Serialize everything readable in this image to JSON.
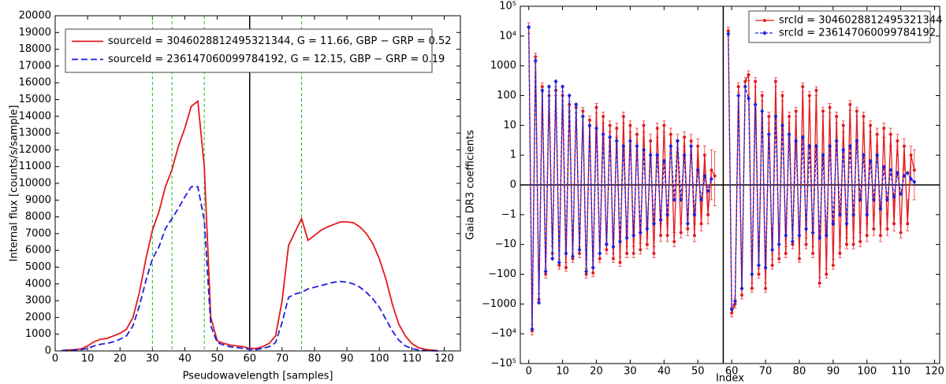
{
  "chart_data": [
    {
      "type": "line",
      "xlabel": "Pseudowavelength [samples]",
      "ylabel": "Internal flux [counts/s/sample]",
      "x": [
        2,
        4,
        6,
        8,
        10,
        12,
        14,
        16,
        18,
        20,
        22,
        24,
        26,
        28,
        30,
        32,
        34,
        36,
        38,
        40,
        42,
        44,
        46,
        48,
        50,
        52,
        54,
        56,
        58,
        60,
        62,
        64,
        66,
        68,
        70,
        72,
        74,
        76,
        78,
        80,
        82,
        84,
        86,
        88,
        90,
        92,
        94,
        96,
        98,
        100,
        102,
        104,
        106,
        108,
        110,
        112,
        114,
        116,
        118
      ],
      "series": [
        {
          "name": "sourceId = 3046028812495321344,  G = 11.66,  GBP − GRP = 0.52",
          "color": "#e41a1c",
          "dashed": false,
          "values": [
            30,
            60,
            80,
            120,
            300,
            550,
            700,
            750,
            900,
            1050,
            1300,
            2000,
            3500,
            5500,
            7200,
            8300,
            9800,
            10800,
            12200,
            13300,
            14600,
            14900,
            11000,
            2000,
            600,
            450,
            350,
            300,
            250,
            150,
            150,
            250,
            450,
            900,
            3000,
            6300,
            7100,
            7900,
            6600,
            6900,
            7200,
            7400,
            7550,
            7700,
            7700,
            7650,
            7400,
            7000,
            6400,
            5500,
            4300,
            2800,
            1600,
            900,
            450,
            200,
            100,
            60,
            20
          ]
        },
        {
          "name": "sourceId = 236147060099784192,  G = 12.15,  GBP − GRP = 0.19",
          "color": "#1f1fe0",
          "dashed": true,
          "values": [
            20,
            40,
            60,
            80,
            150,
            300,
            400,
            450,
            550,
            700,
            900,
            1500,
            2700,
            4200,
            5500,
            6200,
            7300,
            7900,
            8500,
            9200,
            9800,
            9800,
            7800,
            1500,
            500,
            350,
            250,
            200,
            150,
            100,
            80,
            150,
            250,
            500,
            1700,
            3200,
            3400,
            3500,
            3700,
            3800,
            3900,
            4000,
            4100,
            4150,
            4100,
            4000,
            3800,
            3500,
            3100,
            2600,
            1900,
            1200,
            650,
            300,
            150,
            60,
            30,
            15,
            5
          ]
        }
      ],
      "xlim": [
        0,
        125
      ],
      "ylim": [
        0,
        20000
      ],
      "xticks": [
        0,
        10,
        20,
        30,
        40,
        50,
        60,
        70,
        80,
        90,
        100,
        110,
        120
      ],
      "yticks": [
        0,
        1000,
        2000,
        3000,
        4000,
        5000,
        6000,
        7000,
        8000,
        9000,
        10000,
        11000,
        12000,
        13000,
        14000,
        15000,
        16000,
        17000,
        18000,
        19000,
        20000
      ],
      "reference_lines": [
        {
          "x": 30,
          "color": "#22bb22",
          "dashed": true
        },
        {
          "x": 36,
          "color": "#22bb22",
          "dashed": true
        },
        {
          "x": 46,
          "color": "#22bb22",
          "dashed": true
        },
        {
          "x": 76,
          "color": "#22bb22",
          "dashed": true
        },
        {
          "x": 60,
          "color": "#000000",
          "dashed": false
        }
      ],
      "legend": "upper left"
    },
    {
      "type": "line",
      "xlabel": "Index",
      "ylabel": "Gaia DR3 coefficients",
      "yscale": "symlog",
      "x": [
        0,
        1,
        2,
        3,
        4,
        5,
        6,
        7,
        8,
        9,
        10,
        11,
        12,
        13,
        14,
        15,
        16,
        17,
        18,
        19,
        20,
        21,
        22,
        23,
        24,
        25,
        26,
        27,
        28,
        29,
        30,
        31,
        32,
        33,
        34,
        35,
        36,
        37,
        38,
        39,
        40,
        41,
        42,
        43,
        44,
        45,
        46,
        47,
        48,
        49,
        50,
        51,
        52,
        53,
        54,
        55,
        56,
        57,
        58,
        59,
        60,
        61,
        62,
        63,
        64,
        65,
        66,
        67,
        68,
        69,
        70,
        71,
        72,
        73,
        74,
        75,
        76,
        77,
        78,
        79,
        80,
        81,
        82,
        83,
        84,
        85,
        86,
        87,
        88,
        89,
        90,
        91,
        92,
        93,
        94,
        95,
        96,
        97,
        98,
        99,
        100,
        101,
        102,
        103,
        104,
        105,
        106,
        107,
        108,
        109,
        110,
        111,
        112,
        113,
        114
      ],
      "series": [
        {
          "name": "srcId = 3046028812495321344",
          "color": "#e41a1c",
          "dashed": false,
          "marker": "circle",
          "values": [
            20000,
            -8000,
            2000,
            -700,
            200,
            -100,
            100,
            -20,
            150,
            -50,
            100,
            -60,
            50,
            -30,
            40,
            -20,
            30,
            -100,
            15,
            -90,
            40,
            -30,
            20,
            -15,
            10,
            -30,
            8,
            -40,
            20,
            -20,
            10,
            -20,
            5,
            -15,
            10,
            -10,
            3,
            -20,
            8,
            -5,
            10,
            -5,
            5,
            -8,
            3,
            -4,
            4,
            -3,
            3,
            -5,
            2,
            -2,
            1,
            -1,
            0.5,
            0.3,
            null,
            null,
            null,
            15000,
            -2000,
            -1000,
            200,
            -500,
            300,
            500,
            -300,
            300,
            -100,
            100,
            -300,
            20,
            -50,
            300,
            -30,
            100,
            -20,
            20,
            -10,
            30,
            -30,
            200,
            -10,
            100,
            -20,
            150,
            -200,
            30,
            -100,
            40,
            -50,
            20,
            -20,
            10,
            -10,
            50,
            -10,
            30,
            -8,
            20,
            -5,
            10,
            -3,
            5,
            -5,
            8,
            -3,
            5,
            -2,
            3,
            -4,
            2,
            -2,
            1,
            0.5
          ],
          "errors": [
            8000,
            3000,
            700,
            250,
            70,
            35,
            35,
            8,
            50,
            18,
            35,
            20,
            18,
            10,
            14,
            8,
            10,
            35,
            6,
            30,
            14,
            10,
            8,
            6,
            4,
            10,
            4,
            14,
            8,
            8,
            4,
            8,
            3,
            6,
            4,
            4,
            2,
            8,
            4,
            3,
            4,
            3,
            3,
            4,
            2,
            2,
            2,
            2,
            2,
            3,
            1.5,
            1.5,
            1,
            1,
            1,
            1,
            null,
            null,
            null,
            5000,
            700,
            350,
            70,
            180,
            100,
            180,
            100,
            100,
            35,
            35,
            100,
            8,
            18,
            100,
            10,
            35,
            8,
            8,
            4,
            10,
            10,
            70,
            4,
            35,
            8,
            50,
            70,
            10,
            35,
            14,
            18,
            8,
            8,
            4,
            4,
            18,
            4,
            10,
            4,
            8,
            3,
            4,
            2,
            3,
            3,
            4,
            2,
            3,
            1.5,
            2,
            2,
            1.5,
            1.5,
            1,
            1
          ]
        },
        {
          "name": "srcId = 236147060099784192",
          "color": "#1f1fe0",
          "dashed": true,
          "marker": "diamond",
          "values": [
            20000,
            -7000,
            1500,
            -900,
            150,
            -80,
            200,
            -30,
            300,
            -40,
            200,
            -20,
            100,
            -25,
            50,
            -15,
            20,
            -80,
            10,
            -60,
            8,
            -20,
            5,
            -10,
            4,
            -12,
            3,
            -8,
            2,
            -6,
            3,
            -5,
            2,
            -4,
            1.5,
            -3,
            1,
            -2,
            1,
            -1.5,
            0.8,
            -1,
            2,
            -0.5,
            3,
            -0.5,
            1,
            -2,
            2,
            -1,
            0.5,
            -0.5,
            0.3,
            -0.2,
            0.2,
            null,
            null,
            null,
            null,
            12000,
            -1500,
            -800,
            100,
            -300,
            200,
            80,
            -100,
            50,
            -50,
            30,
            -60,
            5,
            -15,
            20,
            -10,
            10,
            -5,
            5,
            -8,
            3,
            -5,
            4,
            -3,
            2,
            -4,
            2,
            -6,
            1,
            -5,
            2,
            -2,
            3,
            -1,
            1.5,
            -2,
            2,
            -1,
            3,
            -0.5,
            1,
            -1,
            0.8,
            -0.5,
            1,
            -0.8,
            0.6,
            -0.5,
            0.5,
            -0.4,
            0.4,
            -0.3,
            0.3,
            0.4,
            0.2,
            0.1
          ]
        }
      ],
      "xlim": [
        -2.5,
        121.5
      ],
      "ylim": [
        -100000,
        100000
      ],
      "xticks": [
        0,
        10,
        20,
        30,
        40,
        50,
        60,
        70,
        80,
        90,
        100,
        110,
        120
      ],
      "yticks": [
        {
          "value": -100000,
          "label": "−10⁵"
        },
        {
          "value": -10000,
          "label": "−10⁴"
        },
        {
          "value": -1000,
          "label": "−1000"
        },
        {
          "value": -100,
          "label": "−100"
        },
        {
          "value": -10,
          "label": "−10"
        },
        {
          "value": -1,
          "label": "−1"
        },
        0,
        1,
        10,
        100,
        1000,
        {
          "value": 10000,
          "label": "10⁴"
        },
        {
          "value": 100000,
          "label": "10⁵"
        }
      ],
      "reference_lines": [
        {
          "x": 57.5,
          "color": "#000000",
          "dashed": false
        },
        {
          "y": 0,
          "color": "#000000",
          "dashed": false
        }
      ],
      "legend": "upper right"
    }
  ]
}
